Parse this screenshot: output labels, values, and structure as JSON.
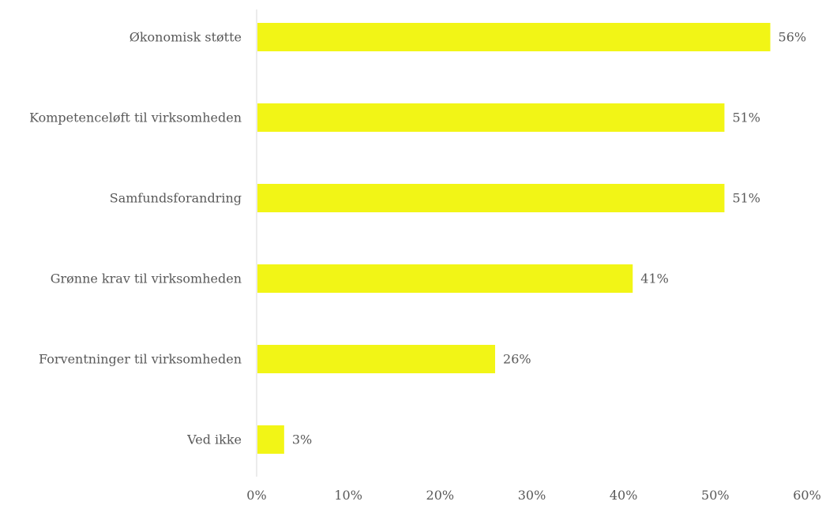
{
  "chart_data": {
    "type": "bar",
    "orientation": "horizontal",
    "categories": [
      "Økonomisk støtte",
      "Kompetenceløft til virksomheden",
      "Samfundsforandring",
      "Grønne krav til virksomheden",
      "Forventninger til virksomheden",
      "Ved ikke"
    ],
    "values": [
      56,
      51,
      51,
      41,
      26,
      3
    ],
    "value_labels": [
      "56%",
      "51%",
      "51%",
      "41%",
      "26%",
      "3%"
    ],
    "xlim": [
      0,
      60
    ],
    "x_ticks": [
      0,
      10,
      20,
      30,
      40,
      50,
      60
    ],
    "x_tick_labels": [
      "0%",
      "10%",
      "20%",
      "30%",
      "40%",
      "50%",
      "60%"
    ],
    "title": "",
    "xlabel": "",
    "ylabel": "",
    "grid": false,
    "legend": "none",
    "colors": {
      "bar": "#F2F516",
      "axis": "#D9D9D9",
      "text": "#595959"
    }
  }
}
